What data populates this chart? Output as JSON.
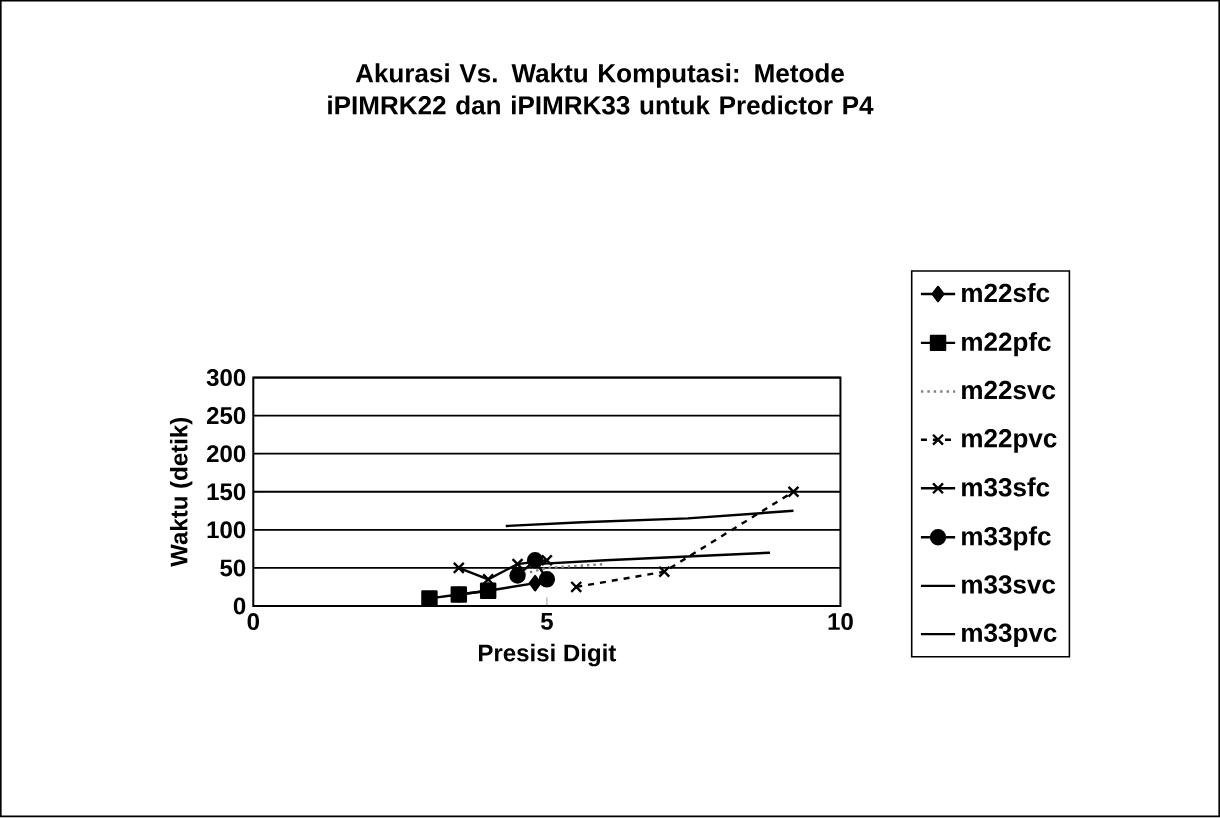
{
  "chart_data": {
    "type": "line",
    "title": "Akurasi Vs. Waktu Komputasi:  Metode iPIMRK22 dan iPIMRK33 untuk Predictor P4",
    "xlabel": "Presisi Digit",
    "ylabel": "Waktu (detik)",
    "xlim": [
      0,
      10
    ],
    "xticks": [
      0,
      5,
      10
    ],
    "ylim": [
      0,
      300
    ],
    "yticks": [
      0,
      50,
      100,
      150,
      200,
      250,
      300
    ],
    "grid": "y",
    "legend": "right",
    "series": [
      {
        "name": "m22sfc",
        "color": "#000000",
        "marker": "diamond",
        "line_style": "solid",
        "x": [
          3.5,
          4.0,
          4.8
        ],
        "values": [
          15,
          20,
          30
        ]
      },
      {
        "name": "m22pfc",
        "color": "#000000",
        "marker": "square",
        "line_style": "solid",
        "x": [
          3.0,
          3.5,
          4.0
        ],
        "values": [
          10,
          15,
          20
        ]
      },
      {
        "name": "m22svc",
        "color": "#808080",
        "marker": "none",
        "line_style": "dotted",
        "x": [
          4.5,
          5.0,
          6.0
        ],
        "values": [
          40,
          50,
          55
        ]
      },
      {
        "name": "m22pvc",
        "color": "#000000",
        "marker": "cross",
        "line_style": "dashed",
        "x": [
          5.5,
          7.0,
          9.2
        ],
        "values": [
          25,
          45,
          150
        ]
      },
      {
        "name": "m33sfc",
        "color": "#000000",
        "marker": "cross",
        "line_style": "solid",
        "x": [
          3.5,
          4.0,
          4.5,
          5.0
        ],
        "values": [
          50,
          35,
          55,
          60
        ]
      },
      {
        "name": "m33pfc",
        "color": "#000000",
        "marker": "circle",
        "line_style": "solid",
        "x": [
          4.5,
          4.8,
          5.0
        ],
        "values": [
          40,
          60,
          35
        ]
      },
      {
        "name": "m33svc",
        "color": "#000000",
        "marker": "none",
        "line_style": "solid",
        "x": [
          4.3,
          5.6,
          7.4,
          9.2
        ],
        "values": [
          105,
          110,
          115,
          125
        ]
      },
      {
        "name": "m33pvc",
        "color": "#000000",
        "marker": "none",
        "line_style": "solid",
        "x": [
          4.8,
          6.0,
          8.8
        ],
        "values": [
          55,
          60,
          70
        ]
      }
    ]
  }
}
